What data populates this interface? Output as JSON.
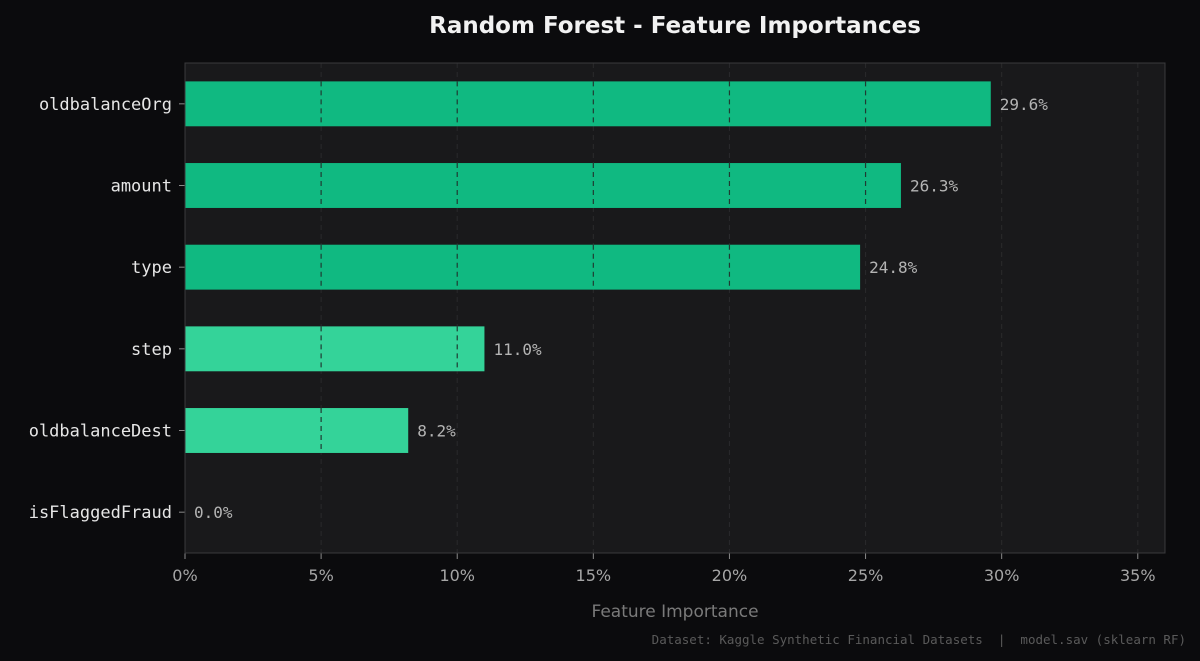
{
  "chart_data": {
    "type": "bar",
    "orientation": "horizontal",
    "title": "Random Forest - Feature Importances",
    "xlabel": "Feature Importance",
    "ylabel": "",
    "xlim": [
      0,
      36
    ],
    "x_ticks": [
      0,
      5,
      10,
      15,
      20,
      25,
      30,
      35
    ],
    "x_tick_labels": [
      "0%",
      "5%",
      "10%",
      "15%",
      "20%",
      "25%",
      "30%",
      "35%"
    ],
    "grid": "vertical dashed",
    "categories": [
      "oldbalanceOrg",
      "amount",
      "type",
      "step",
      "oldbalanceDest",
      "isFlaggedFraud"
    ],
    "values": [
      29.6,
      26.3,
      24.8,
      11.0,
      8.2,
      0.0
    ],
    "value_labels": [
      "29.6%",
      "26.3%",
      "24.8%",
      "11.0%",
      "8.2%",
      "0.0%"
    ],
    "bar_colors": [
      "#10b981",
      "#10b981",
      "#10b981",
      "#34d399",
      "#34d399",
      "#34d399"
    ]
  },
  "footer": {
    "source": "Dataset: Kaggle Synthetic Financial Datasets  |  model.sav (sklearn RF)"
  },
  "colors": {
    "page_background": "#0b0b0d",
    "plot_background": "#19191b",
    "plot_border": "#3a3a3c",
    "grid": "#2a2a2c"
  }
}
